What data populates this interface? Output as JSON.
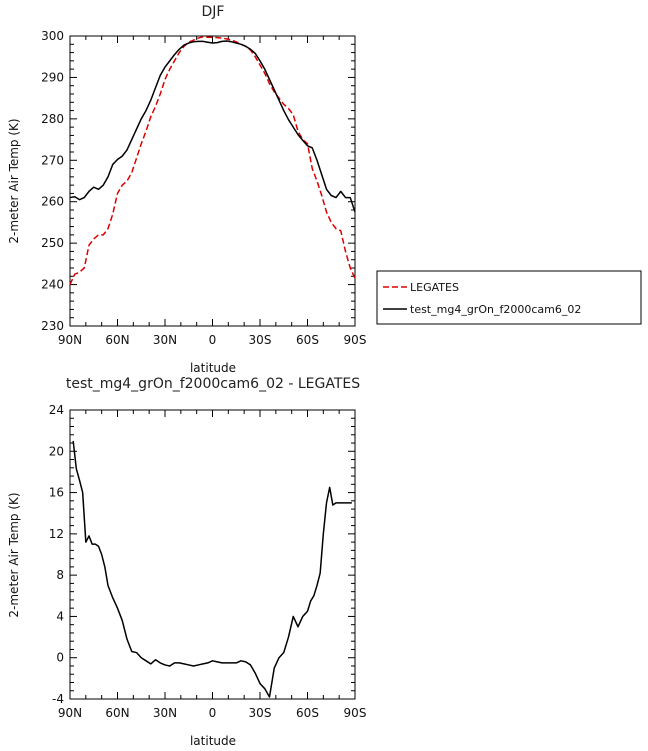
{
  "chart_data": [
    {
      "type": "line",
      "title": "DJF",
      "xlabel": "latitude",
      "ylabel": "2-meter Air Temp (K)",
      "xlim": [
        90,
        -90
      ],
      "ylim": [
        230,
        300
      ],
      "x_tick_values": [
        90,
        60,
        30,
        0,
        -30,
        -60,
        -90
      ],
      "x_tick_labels": [
        "90N",
        "60N",
        "30N",
        "0",
        "30S",
        "60S",
        "90S"
      ],
      "y_ticks": [
        230,
        240,
        250,
        260,
        270,
        280,
        290,
        300
      ],
      "legend": "right",
      "series": [
        {
          "name": "LEGATES",
          "color": "#dd0000",
          "dashed": true,
          "x": [
            90,
            87,
            84,
            81,
            78,
            75,
            72,
            69,
            66,
            63,
            60,
            57,
            54,
            51,
            48,
            45,
            42,
            39,
            36,
            33,
            30,
            27,
            24,
            21,
            18,
            15,
            12,
            9,
            6,
            3,
            0,
            -3,
            -6,
            -9,
            -12,
            -15,
            -18,
            -21,
            -24,
            -27,
            -30,
            -33,
            -36,
            -39,
            -42,
            -45,
            -48,
            -51,
            -54,
            -57,
            -60,
            -63,
            -66,
            -69,
            -72,
            -75,
            -78,
            -81,
            -84,
            -87,
            -90
          ],
          "y": [
            240,
            242.5,
            243,
            244,
            249.5,
            251,
            252,
            252,
            253.5,
            257,
            262,
            264,
            265,
            267,
            270.5,
            274,
            277,
            280.5,
            283,
            286,
            289.5,
            292,
            294,
            296,
            297.5,
            298.5,
            299,
            299.5,
            299.8,
            299.7,
            299.7,
            299.6,
            299.5,
            299.3,
            299,
            298.6,
            298,
            297.5,
            296.6,
            295,
            293,
            291,
            288.5,
            286.5,
            285,
            283.5,
            282.5,
            281,
            277,
            275,
            274,
            268,
            265,
            261.5,
            257.5,
            255,
            253.5,
            253,
            248,
            244,
            241.5
          ]
        },
        {
          "name": "test_mg4_grOn_f2000cam6_02",
          "color": "#000000",
          "dashed": false,
          "x": [
            90,
            87,
            84,
            81,
            78,
            75,
            72,
            69,
            66,
            63,
            60,
            57,
            54,
            51,
            48,
            45,
            42,
            39,
            36,
            33,
            30,
            27,
            24,
            21,
            18,
            15,
            12,
            9,
            6,
            3,
            0,
            -3,
            -6,
            -9,
            -12,
            -15,
            -18,
            -21,
            -24,
            -27,
            -30,
            -33,
            -36,
            -39,
            -42,
            -45,
            -48,
            -51,
            -54,
            -57,
            -60,
            -63,
            -66,
            -69,
            -72,
            -75,
            -78,
            -81,
            -84,
            -87,
            -90
          ],
          "y": [
            261,
            261.2,
            260.5,
            261,
            262.5,
            263.5,
            263,
            264,
            266,
            269,
            270.2,
            271,
            272.5,
            275,
            277.5,
            280,
            282,
            284.5,
            287.5,
            290.5,
            292.5,
            294,
            295.5,
            296.8,
            297.8,
            298.3,
            298.6,
            298.7,
            298.7,
            298.5,
            298.3,
            298.4,
            298.7,
            298.8,
            298.6,
            298.3,
            298,
            297.5,
            296.8,
            295.8,
            294,
            292,
            289.5,
            287,
            284.5,
            282,
            279.8,
            278,
            276.2,
            274.8,
            273.5,
            273,
            270,
            266.5,
            263,
            261.5,
            261,
            262.5,
            261,
            261,
            257.5
          ]
        }
      ]
    },
    {
      "type": "line",
      "title": "test_mg4_grOn_f2000cam6_02 - LEGATES",
      "xlabel": "latitude",
      "ylabel": "2-meter Air Temp (K)",
      "xlim": [
        90,
        -90
      ],
      "ylim": [
        -4,
        24
      ],
      "x_tick_values": [
        90,
        60,
        30,
        0,
        -30,
        -60,
        -90
      ],
      "x_tick_labels": [
        "90N",
        "60N",
        "30N",
        "0",
        "30S",
        "60S",
        "90S"
      ],
      "y_ticks": [
        -4,
        0,
        4,
        8,
        12,
        16,
        20,
        24
      ],
      "series": [
        {
          "color": "#000000",
          "x": [
            88,
            86,
            84,
            82,
            80,
            78,
            76,
            74,
            72,
            70,
            68,
            66,
            63,
            60,
            57,
            54,
            51,
            48,
            45,
            42,
            39,
            36,
            33,
            30,
            27,
            24,
            21,
            18,
            15,
            12,
            9,
            6,
            3,
            0,
            -3,
            -6,
            -9,
            -12,
            -15,
            -18,
            -21,
            -24,
            -27,
            -30,
            -33,
            -36,
            -39,
            -42,
            -45,
            -48,
            -51,
            -54,
            -57,
            -60,
            -62,
            -64,
            -66,
            -68,
            -70,
            -72,
            -74,
            -76,
            -78,
            -80,
            -82,
            -84,
            -86,
            -88
          ],
          "y": [
            21,
            18.3,
            17.2,
            16,
            11.2,
            11.8,
            11,
            11,
            10.8,
            10,
            8.8,
            7,
            5.8,
            4.8,
            3.6,
            1.8,
            0.6,
            0.5,
            0,
            -0.3,
            -0.6,
            -0.2,
            -0.5,
            -0.7,
            -0.8,
            -0.5,
            -0.5,
            -0.6,
            -0.7,
            -0.8,
            -0.7,
            -0.6,
            -0.5,
            -0.3,
            -0.4,
            -0.5,
            -0.5,
            -0.5,
            -0.5,
            -0.3,
            -0.4,
            -0.7,
            -1.5,
            -2.5,
            -3,
            -3.8,
            -1,
            0,
            0.5,
            2,
            4,
            3,
            4,
            4.5,
            5.5,
            6,
            7,
            8.2,
            12,
            15,
            16.5,
            14.8,
            15,
            15,
            15,
            15,
            15,
            15
          ]
        }
      ]
    }
  ]
}
